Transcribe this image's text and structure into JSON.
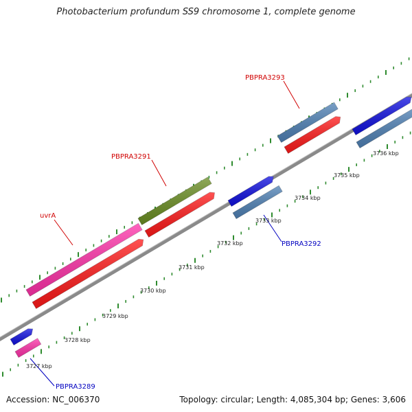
{
  "title": "Photobacterium profundum SS9 chromosome 1, complete genome",
  "footer": {
    "accession": "Accession: NC_006370",
    "topology": "Topology: circular; Length: 4,085,304 bp; Genes: 3,606"
  },
  "colors": {
    "backbone": "#8a8a8a",
    "tick": "#2e8b2e",
    "cds_red": "#ff1a1a",
    "cds_pink": "#ff33aa",
    "cds_olive": "#6b8e23",
    "cds_blue": "#1010e0",
    "cds_steel": "#4f81b5",
    "label_red": "#d00000",
    "label_blue": "#0000c0"
  },
  "scale_labels": [
    "3727 kbp",
    "3728 kbp",
    "3729 kbp",
    "3730 kbp",
    "3731 kbp",
    "3732 kbp",
    "3733 kbp",
    "3734 kbp",
    "3735 kbp",
    "3736 kbp"
  ],
  "gene_labels": [
    {
      "text": "uvrA",
      "color": "red"
    },
    {
      "text": "PBPRA3291",
      "color": "red"
    },
    {
      "text": "PBPRA3293",
      "color": "red"
    },
    {
      "text": "PBPRA3292",
      "color": "blue"
    },
    {
      "text": "PBPRA3289",
      "color": "blue"
    }
  ]
}
